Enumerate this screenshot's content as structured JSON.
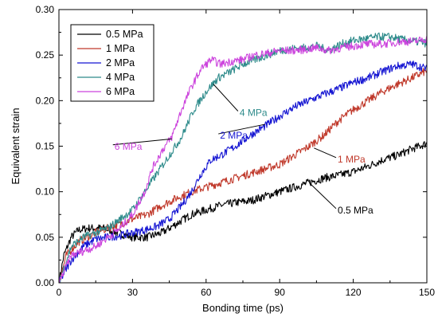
{
  "chart_data": {
    "type": "line",
    "title": "",
    "xlabel": "Bonding time (ps)",
    "ylabel": "Equivalent strain",
    "xlim": [
      0,
      150
    ],
    "ylim": [
      0,
      0.3
    ],
    "xticks": [
      "0",
      "30",
      "60",
      "90",
      "120",
      "150"
    ],
    "yticks": [
      "0.00",
      "0.05",
      "0.10",
      "0.15",
      "0.20",
      "0.25",
      "0.30"
    ],
    "grid": false,
    "legend_position": "top-left",
    "series": [
      {
        "name": "0.5 MPa",
        "color": "#000000",
        "x": [
          0,
          2,
          5,
          8,
          12,
          18,
          24,
          30,
          36,
          42,
          48,
          54,
          60,
          66,
          72,
          78,
          84,
          90,
          96,
          102,
          108,
          114,
          120,
          126,
          132,
          138,
          144,
          150
        ],
        "y": [
          0.0,
          0.03,
          0.05,
          0.058,
          0.06,
          0.06,
          0.055,
          0.05,
          0.05,
          0.055,
          0.065,
          0.075,
          0.08,
          0.085,
          0.088,
          0.09,
          0.095,
          0.1,
          0.105,
          0.11,
          0.115,
          0.118,
          0.122,
          0.128,
          0.135,
          0.14,
          0.147,
          0.153
        ]
      },
      {
        "name": "1 MPa",
        "color": "#c0392b",
        "x": [
          0,
          3,
          8,
          15,
          22,
          30,
          36,
          42,
          48,
          54,
          60,
          66,
          72,
          78,
          84,
          90,
          96,
          102,
          108,
          114,
          120,
          126,
          132,
          138,
          144,
          150
        ],
        "y": [
          0.0,
          0.03,
          0.045,
          0.055,
          0.062,
          0.07,
          0.075,
          0.085,
          0.093,
          0.1,
          0.105,
          0.11,
          0.115,
          0.12,
          0.125,
          0.13,
          0.14,
          0.15,
          0.162,
          0.178,
          0.19,
          0.2,
          0.21,
          0.218,
          0.225,
          0.233
        ]
      },
      {
        "name": "2 MPa",
        "color": "#1414d2",
        "x": [
          0,
          5,
          10,
          15,
          20,
          25,
          30,
          35,
          40,
          45,
          50,
          54,
          58,
          62,
          66,
          72,
          78,
          84,
          90,
          96,
          102,
          108,
          114,
          120,
          126,
          132,
          138,
          144,
          150
        ],
        "y": [
          0.0,
          0.025,
          0.04,
          0.048,
          0.05,
          0.052,
          0.055,
          0.058,
          0.062,
          0.07,
          0.085,
          0.1,
          0.12,
          0.135,
          0.14,
          0.15,
          0.162,
          0.172,
          0.183,
          0.193,
          0.2,
          0.207,
          0.213,
          0.22,
          0.225,
          0.232,
          0.238,
          0.24,
          0.235
        ]
      },
      {
        "name": "4 MPa",
        "color": "#2e8b8b",
        "x": [
          0,
          5,
          10,
          15,
          20,
          25,
          30,
          35,
          40,
          45,
          50,
          55,
          60,
          65,
          70,
          75,
          80,
          85,
          90,
          95,
          100,
          105,
          110,
          115,
          120,
          125,
          130,
          135,
          140,
          145,
          150
        ],
        "y": [
          0.0,
          0.04,
          0.05,
          0.055,
          0.06,
          0.07,
          0.08,
          0.1,
          0.12,
          0.14,
          0.16,
          0.19,
          0.21,
          0.225,
          0.232,
          0.24,
          0.245,
          0.25,
          0.255,
          0.257,
          0.258,
          0.26,
          0.255,
          0.262,
          0.266,
          0.268,
          0.27,
          0.27,
          0.267,
          0.265,
          0.263
        ]
      },
      {
        "name": "6 MPa",
        "color": "#cc44dd",
        "x": [
          0,
          5,
          10,
          15,
          20,
          25,
          30,
          35,
          38,
          42,
          46,
          50,
          54,
          58,
          62,
          66,
          70,
          75,
          80,
          85,
          90,
          95,
          100,
          105,
          110,
          115,
          120,
          125,
          130,
          135,
          140,
          145,
          150
        ],
        "y": [
          0.0,
          0.03,
          0.035,
          0.04,
          0.05,
          0.06,
          0.075,
          0.1,
          0.125,
          0.145,
          0.16,
          0.19,
          0.215,
          0.235,
          0.245,
          0.24,
          0.243,
          0.245,
          0.25,
          0.252,
          0.255,
          0.255,
          0.256,
          0.258,
          0.255,
          0.258,
          0.26,
          0.262,
          0.262,
          0.263,
          0.265,
          0.265,
          0.268
        ]
      }
    ],
    "annotations": [
      {
        "text": "0.5 MPa",
        "color": "#000000",
        "series": 0,
        "x": 102,
        "y": 0.11,
        "tx": 113,
        "ty": 0.078
      },
      {
        "text": "1 MPa",
        "color": "#c0392b",
        "series": 1,
        "x": 104,
        "y": 0.148,
        "tx": 113,
        "ty": 0.134
      },
      {
        "text": "2 MPa",
        "color": "#1414d2",
        "series": 2,
        "x": 84,
        "y": 0.174,
        "tx": 65,
        "ty": 0.16
      },
      {
        "text": "4 MPa",
        "color": "#2e8b8b",
        "series": 3,
        "x": 63,
        "y": 0.218,
        "tx": 73,
        "ty": 0.185
      },
      {
        "text": "6 MPa",
        "color": "#cc44dd",
        "series": 4,
        "x": 46,
        "y": 0.158,
        "tx": 22,
        "ty": 0.148
      }
    ]
  }
}
